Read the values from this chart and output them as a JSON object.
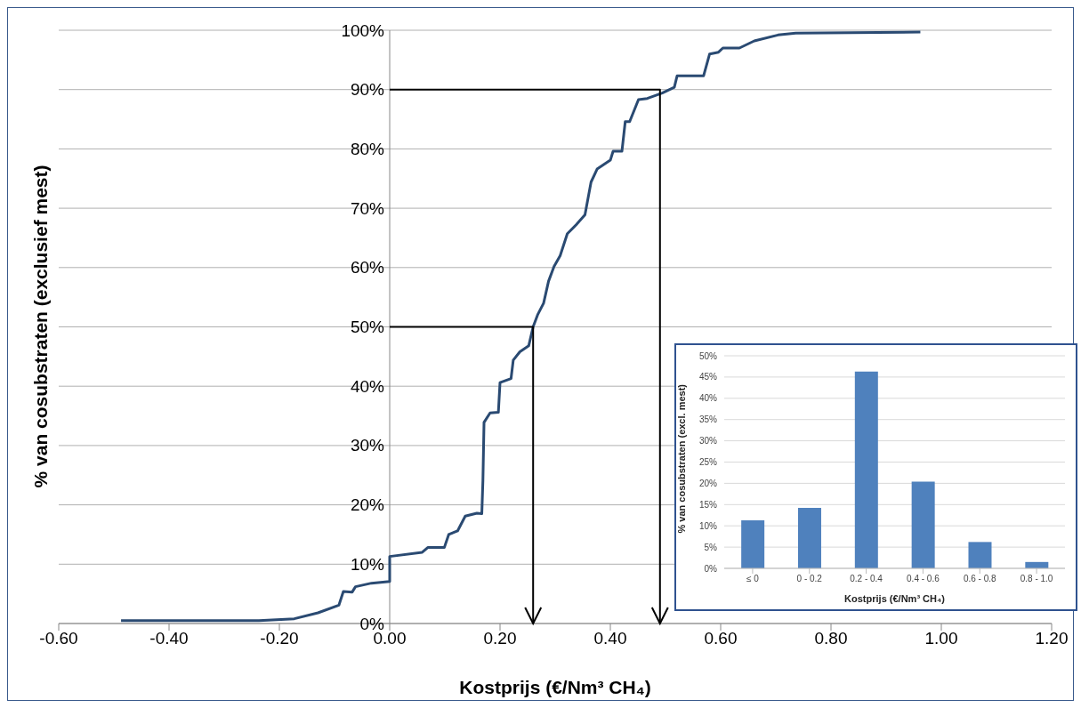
{
  "chart_data": [
    {
      "type": "line",
      "xlabel": "Kostprijs (€/Nm³ CH₄)",
      "ylabel": "% van cosubstraten (exclusief mest)",
      "xlim": [
        -0.6,
        1.2
      ],
      "xticks": [
        {
          "value": -0.6,
          "label": "-0.60"
        },
        {
          "value": -0.4,
          "label": "-0.40"
        },
        {
          "value": -0.2,
          "label": "-0.20"
        },
        {
          "value": 0,
          "label": "0.00"
        },
        {
          "value": 0.2,
          "label": "0.20"
        },
        {
          "value": 0.4,
          "label": "0.40"
        },
        {
          "value": 0.6,
          "label": "0.60"
        },
        {
          "value": 0.8,
          "label": "0.80"
        },
        {
          "value": 1.0,
          "label": "1.00"
        },
        {
          "value": 1.2,
          "label": "1.20"
        }
      ],
      "ylim": [
        0,
        100
      ],
      "yticks": [
        {
          "value": 0,
          "label": "0%"
        },
        {
          "value": 10,
          "label": "10%"
        },
        {
          "value": 20,
          "label": "20%"
        },
        {
          "value": 30,
          "label": "30%"
        },
        {
          "value": 40,
          "label": "40%"
        },
        {
          "value": 50,
          "label": "50%"
        },
        {
          "value": 60,
          "label": "60%"
        },
        {
          "value": 70,
          "label": "70%"
        },
        {
          "value": 80,
          "label": "80%"
        },
        {
          "value": 90,
          "label": "90%"
        },
        {
          "value": 100,
          "label": "100%"
        }
      ],
      "grid": "y",
      "marker": "none",
      "series": [
        {
          "color": "#2a4a72",
          "x": [
            -0.487,
            -0.237,
            -0.173,
            -0.13,
            -0.092,
            -0.084,
            -0.068,
            -0.062,
            -0.033,
            0,
            0,
            0.059,
            0.069,
            0.099,
            0.107,
            0.123,
            0.137,
            0.158,
            0.167,
            0.169,
            0.171,
            0.182,
            0.197,
            0.2,
            0.22,
            0.224,
            0.236,
            0.252,
            0.26,
            0.268,
            0.279,
            0.288,
            0.298,
            0.309,
            0.322,
            0.338,
            0.354,
            0.365,
            0.376,
            0.4,
            0.405,
            0.421,
            0.427,
            0.435,
            0.451,
            0.467,
            0.494,
            0.516,
            0.521,
            0.569,
            0.58,
            0.596,
            0.604,
            0.634,
            0.661,
            0.704,
            0.736,
            0.962
          ],
          "values": [
            0.5,
            0.5,
            0.8,
            1.8,
            3.1,
            5.4,
            5.3,
            6.2,
            6.8,
            7.1,
            11.3,
            12.0,
            12.8,
            12.8,
            15.0,
            15.6,
            18.1,
            18.6,
            18.5,
            24.1,
            33.9,
            35.5,
            35.6,
            40.6,
            41.3,
            44.4,
            45.8,
            46.8,
            50.0,
            52.0,
            54.0,
            57.7,
            60.2,
            62.0,
            65.7,
            67.2,
            68.9,
            74.4,
            76.6,
            78.1,
            79.6,
            79.6,
            84.6,
            84.6,
            88.3,
            88.5,
            89.4,
            90.4,
            92.3,
            92.3,
            96.0,
            96.3,
            97.0,
            97.0,
            98.2,
            99.2,
            99.5,
            99.7
          ]
        },
        {
          "color": "#000000",
          "x": [
            0,
            0.26,
            0.26
          ],
          "values": [
            50,
            50,
            0
          ]
        },
        {
          "color": "#000000",
          "x": [
            0,
            0.49,
            0.49
          ],
          "values": [
            90,
            90,
            0
          ]
        }
      ]
    },
    {
      "type": "bar",
      "xlabel": "Kostprijs (€/Nm³ CH₄)",
      "ylabel": "% van cosubstraten (excl. mest)",
      "categories": [
        "≤ 0",
        "0 - 0.2",
        "0.2 - 0.4",
        "0.4 - 0.6",
        "0.6 - 0.8",
        "0.8 - 1.0"
      ],
      "values": [
        11.3,
        14.2,
        46.3,
        20.4,
        6.2,
        1.5
      ],
      "color": "#4f81bd",
      "ylim": [
        0,
        50
      ],
      "yticks": [
        {
          "value": 0,
          "label": "0%"
        },
        {
          "value": 5,
          "label": "5%"
        },
        {
          "value": 10,
          "label": "10%"
        },
        {
          "value": 15,
          "label": "15%"
        },
        {
          "value": 20,
          "label": "20%"
        },
        {
          "value": 25,
          "label": "25%"
        },
        {
          "value": 30,
          "label": "30%"
        },
        {
          "value": 35,
          "label": "35%"
        },
        {
          "value": 40,
          "label": "40%"
        },
        {
          "value": 45,
          "label": "45%"
        },
        {
          "value": 50,
          "label": "50%"
        }
      ],
      "grid": "y"
    }
  ]
}
